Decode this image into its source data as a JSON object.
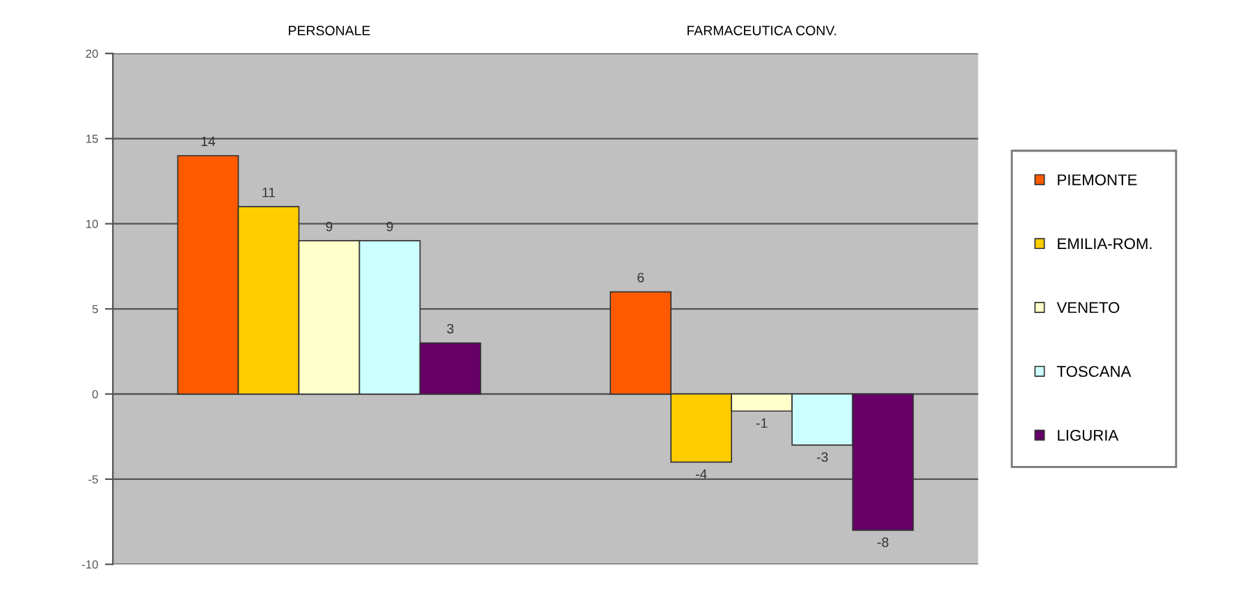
{
  "chart_data": {
    "type": "bar",
    "categories": [
      "PERSONALE",
      "FARMACEUTICA CONV."
    ],
    "series": [
      {
        "name": "PIEMONTE",
        "color": "#ff5a00",
        "values": [
          14,
          6
        ]
      },
      {
        "name": "EMILIA-ROM.",
        "color": "#ffcc00",
        "values": [
          11,
          -4
        ]
      },
      {
        "name": "VENETO",
        "color": "#ffffcc",
        "values": [
          9,
          -1
        ]
      },
      {
        "name": "TOSCANA",
        "color": "#ccffff",
        "values": [
          9,
          -3
        ]
      },
      {
        "name": "LIGURIA",
        "color": "#660066",
        "values": [
          3,
          -8
        ]
      }
    ],
    "ylim": [
      -10,
      20
    ],
    "yticks": [
      -10,
      -5,
      0,
      5,
      10,
      15,
      20
    ],
    "grid": "y",
    "legend": "right",
    "data_labels": true
  }
}
